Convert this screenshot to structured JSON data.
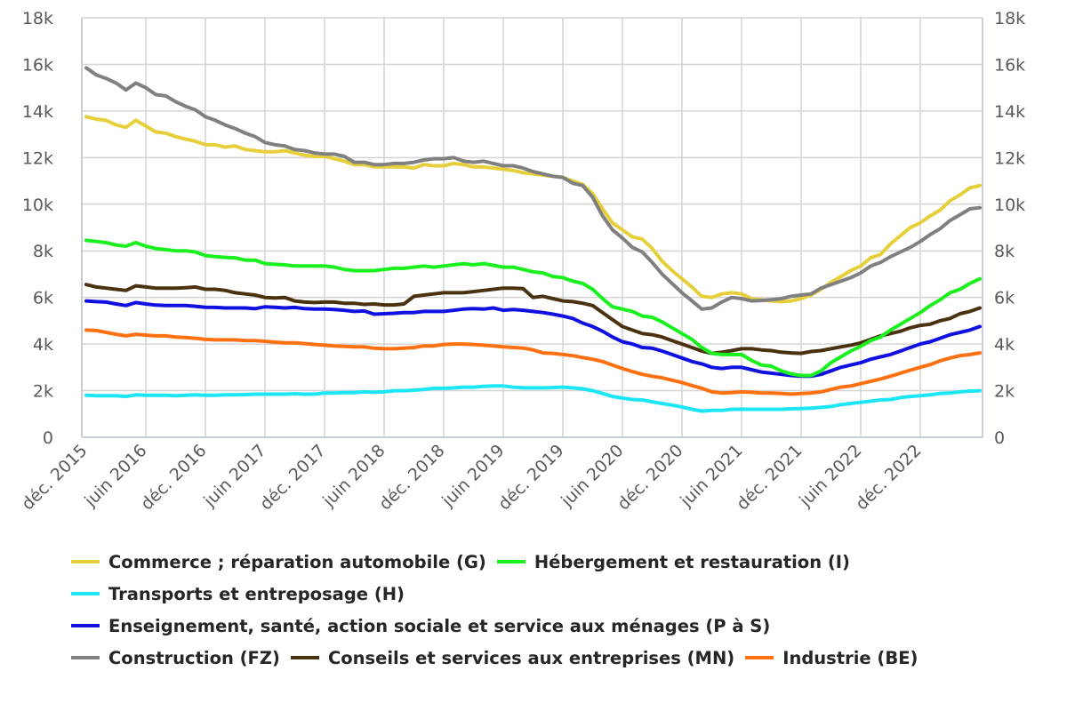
{
  "chart_data": {
    "type": "line",
    "title": "",
    "xlabel": "",
    "ylabel": "",
    "ylim": [
      0,
      18000
    ],
    "y_ticks": [
      "0",
      "2k",
      "4k",
      "6k",
      "8k",
      "10k",
      "12k",
      "14k",
      "16k",
      "18k"
    ],
    "x_start": "déc. 2015",
    "x_end": "juin 2023",
    "x_frequency": "monthly",
    "x_tick_labels": [
      "déc. 2015",
      "juin 2016",
      "déc. 2016",
      "juin 2017",
      "déc. 2017",
      "juin 2018",
      "déc. 2018",
      "juin 2019",
      "déc. 2019",
      "juin 2020",
      "déc. 2020",
      "juin 2021",
      "déc. 2021",
      "juin 2022",
      "déc. 2022"
    ],
    "grid": true,
    "legend_position": "bottom",
    "units": "thousands",
    "series": [
      {
        "name": "Commerce ; réparation automobile (G)",
        "color": "#E6CF3A",
        "values": [
          13.75,
          13.65,
          13.6,
          13.4,
          13.3,
          13.6,
          13.35,
          13.1,
          13.05,
          12.9,
          12.8,
          12.7,
          12.55,
          12.55,
          12.45,
          12.5,
          12.35,
          12.3,
          12.25,
          12.25,
          12.3,
          12.2,
          12.1,
          12.05,
          12.05,
          11.95,
          11.85,
          11.7,
          11.7,
          11.6,
          11.6,
          11.6,
          11.6,
          11.55,
          11.7,
          11.65,
          11.65,
          11.75,
          11.7,
          11.6,
          11.6,
          11.55,
          11.5,
          11.45,
          11.35,
          11.3,
          11.25,
          11.2,
          11.15,
          11.0,
          10.85,
          10.45,
          9.8,
          9.2,
          8.9,
          8.6,
          8.5,
          8.1,
          7.55,
          7.15,
          6.8,
          6.45,
          6.05,
          6.0,
          6.15,
          6.2,
          6.15,
          5.95,
          5.9,
          5.85,
          5.82,
          5.85,
          5.95,
          6.1,
          6.35,
          6.65,
          6.9,
          7.15,
          7.35,
          7.7,
          7.85,
          8.3,
          8.65,
          9.0,
          9.2,
          9.5,
          9.75,
          10.15,
          10.4,
          10.7,
          10.8
        ]
      },
      {
        "name": "Hébergement et restauration (I)",
        "color": "#19F01E",
        "values": [
          8.45,
          8.4,
          8.35,
          8.25,
          8.2,
          8.35,
          8.2,
          8.1,
          8.05,
          8.0,
          8.0,
          7.95,
          7.8,
          7.75,
          7.72,
          7.7,
          7.6,
          7.6,
          7.45,
          7.42,
          7.4,
          7.35,
          7.35,
          7.35,
          7.35,
          7.3,
          7.2,
          7.15,
          7.15,
          7.15,
          7.2,
          7.25,
          7.25,
          7.3,
          7.35,
          7.3,
          7.35,
          7.4,
          7.45,
          7.4,
          7.45,
          7.38,
          7.3,
          7.3,
          7.2,
          7.1,
          7.05,
          6.9,
          6.85,
          6.7,
          6.6,
          6.35,
          5.95,
          5.6,
          5.5,
          5.4,
          5.2,
          5.15,
          4.95,
          4.7,
          4.45,
          4.2,
          3.85,
          3.6,
          3.55,
          3.55,
          3.55,
          3.3,
          3.1,
          3.05,
          2.85,
          2.72,
          2.65,
          2.65,
          2.85,
          3.2,
          3.45,
          3.7,
          3.9,
          4.15,
          4.3,
          4.6,
          4.85,
          5.1,
          5.35,
          5.65,
          5.9,
          6.2,
          6.35,
          6.6,
          6.8
        ]
      },
      {
        "name": "Transports et entreposage (H)",
        "color": "#1CE6F5",
        "values": [
          1.8,
          1.78,
          1.78,
          1.78,
          1.75,
          1.82,
          1.8,
          1.8,
          1.8,
          1.78,
          1.8,
          1.82,
          1.8,
          1.8,
          1.82,
          1.82,
          1.83,
          1.85,
          1.85,
          1.85,
          1.85,
          1.87,
          1.85,
          1.85,
          1.9,
          1.9,
          1.92,
          1.92,
          1.95,
          1.93,
          1.95,
          2.0,
          2.0,
          2.02,
          2.05,
          2.1,
          2.1,
          2.12,
          2.15,
          2.15,
          2.18,
          2.2,
          2.2,
          2.15,
          2.12,
          2.12,
          2.12,
          2.13,
          2.15,
          2.12,
          2.08,
          2.0,
          1.88,
          1.75,
          1.68,
          1.62,
          1.6,
          1.52,
          1.45,
          1.38,
          1.3,
          1.2,
          1.12,
          1.15,
          1.15,
          1.2,
          1.2,
          1.2,
          1.2,
          1.2,
          1.2,
          1.22,
          1.23,
          1.25,
          1.28,
          1.32,
          1.4,
          1.45,
          1.5,
          1.55,
          1.6,
          1.62,
          1.7,
          1.75,
          1.78,
          1.82,
          1.88,
          1.9,
          1.95,
          1.98,
          2.0
        ]
      },
      {
        "name": "Enseignement, santé, action sociale et service aux ménages (P à S)",
        "color": "#1010E0",
        "values": [
          5.85,
          5.82,
          5.8,
          5.72,
          5.65,
          5.78,
          5.72,
          5.67,
          5.65,
          5.65,
          5.65,
          5.62,
          5.58,
          5.57,
          5.55,
          5.55,
          5.55,
          5.52,
          5.6,
          5.58,
          5.55,
          5.57,
          5.52,
          5.5,
          5.5,
          5.48,
          5.45,
          5.4,
          5.42,
          5.28,
          5.3,
          5.32,
          5.35,
          5.35,
          5.4,
          5.4,
          5.4,
          5.45,
          5.5,
          5.52,
          5.5,
          5.55,
          5.45,
          5.48,
          5.45,
          5.4,
          5.35,
          5.28,
          5.2,
          5.1,
          4.9,
          4.75,
          4.55,
          4.3,
          4.1,
          4.0,
          3.85,
          3.82,
          3.7,
          3.55,
          3.4,
          3.25,
          3.15,
          3.0,
          2.95,
          3.0,
          3.0,
          2.9,
          2.8,
          2.75,
          2.7,
          2.65,
          2.62,
          2.62,
          2.7,
          2.85,
          3.0,
          3.1,
          3.2,
          3.35,
          3.45,
          3.55,
          3.7,
          3.85,
          4.0,
          4.1,
          4.25,
          4.4,
          4.5,
          4.6,
          4.75
        ]
      },
      {
        "name": "Construction (FZ)",
        "color": "#808080",
        "values": [
          15.85,
          15.55,
          15.4,
          15.2,
          14.9,
          15.2,
          15.0,
          14.7,
          14.65,
          14.4,
          14.2,
          14.05,
          13.75,
          13.6,
          13.4,
          13.25,
          13.05,
          12.9,
          12.65,
          12.55,
          12.5,
          12.35,
          12.3,
          12.2,
          12.15,
          12.15,
          12.05,
          11.8,
          11.8,
          11.7,
          11.7,
          11.75,
          11.75,
          11.8,
          11.9,
          11.95,
          11.95,
          12.0,
          11.85,
          11.8,
          11.85,
          11.75,
          11.65,
          11.65,
          11.55,
          11.4,
          11.3,
          11.2,
          11.15,
          10.9,
          10.8,
          10.3,
          9.5,
          8.9,
          8.55,
          8.15,
          7.95,
          7.5,
          7.0,
          6.6,
          6.2,
          5.85,
          5.5,
          5.55,
          5.8,
          6.0,
          5.95,
          5.85,
          5.87,
          5.9,
          5.95,
          6.05,
          6.1,
          6.15,
          6.4,
          6.55,
          6.7,
          6.85,
          7.05,
          7.35,
          7.5,
          7.75,
          7.95,
          8.15,
          8.4,
          8.7,
          8.95,
          9.3,
          9.55,
          9.8,
          9.85
        ]
      },
      {
        "name": "Conseils et services aux entreprises (MN)",
        "color": "#4A3210",
        "values": [
          6.55,
          6.45,
          6.4,
          6.35,
          6.3,
          6.5,
          6.45,
          6.4,
          6.4,
          6.4,
          6.42,
          6.45,
          6.35,
          6.35,
          6.3,
          6.2,
          6.15,
          6.1,
          6.0,
          5.98,
          6.0,
          5.85,
          5.8,
          5.78,
          5.8,
          5.8,
          5.75,
          5.75,
          5.7,
          5.72,
          5.68,
          5.68,
          5.72,
          6.05,
          6.1,
          6.15,
          6.2,
          6.2,
          6.2,
          6.25,
          6.3,
          6.35,
          6.4,
          6.4,
          6.38,
          6.0,
          6.05,
          5.95,
          5.85,
          5.82,
          5.75,
          5.65,
          5.35,
          5.05,
          4.75,
          4.6,
          4.45,
          4.4,
          4.3,
          4.15,
          4.0,
          3.85,
          3.7,
          3.6,
          3.65,
          3.72,
          3.8,
          3.8,
          3.75,
          3.72,
          3.65,
          3.62,
          3.6,
          3.68,
          3.72,
          3.8,
          3.88,
          3.95,
          4.05,
          4.2,
          4.35,
          4.45,
          4.55,
          4.7,
          4.8,
          4.85,
          5.0,
          5.1,
          5.3,
          5.4,
          5.55
        ]
      },
      {
        "name": "Industrie (BE)",
        "color": "#FF7010",
        "values": [
          4.6,
          4.58,
          4.5,
          4.42,
          4.35,
          4.42,
          4.38,
          4.35,
          4.35,
          4.3,
          4.28,
          4.25,
          4.2,
          4.18,
          4.18,
          4.18,
          4.15,
          4.15,
          4.12,
          4.08,
          4.05,
          4.05,
          4.02,
          3.98,
          3.95,
          3.92,
          3.9,
          3.88,
          3.88,
          3.82,
          3.8,
          3.8,
          3.82,
          3.85,
          3.92,
          3.92,
          3.98,
          4.0,
          4.0,
          3.98,
          3.95,
          3.92,
          3.88,
          3.85,
          3.83,
          3.75,
          3.62,
          3.6,
          3.55,
          3.5,
          3.42,
          3.35,
          3.25,
          3.1,
          2.95,
          2.82,
          2.7,
          2.62,
          2.55,
          2.45,
          2.35,
          2.22,
          2.1,
          1.95,
          1.9,
          1.92,
          1.95,
          1.93,
          1.9,
          1.9,
          1.88,
          1.85,
          1.88,
          1.9,
          1.95,
          2.05,
          2.15,
          2.2,
          2.3,
          2.4,
          2.5,
          2.62,
          2.75,
          2.88,
          3.0,
          3.12,
          3.28,
          3.4,
          3.5,
          3.55,
          3.62
        ]
      }
    ]
  }
}
